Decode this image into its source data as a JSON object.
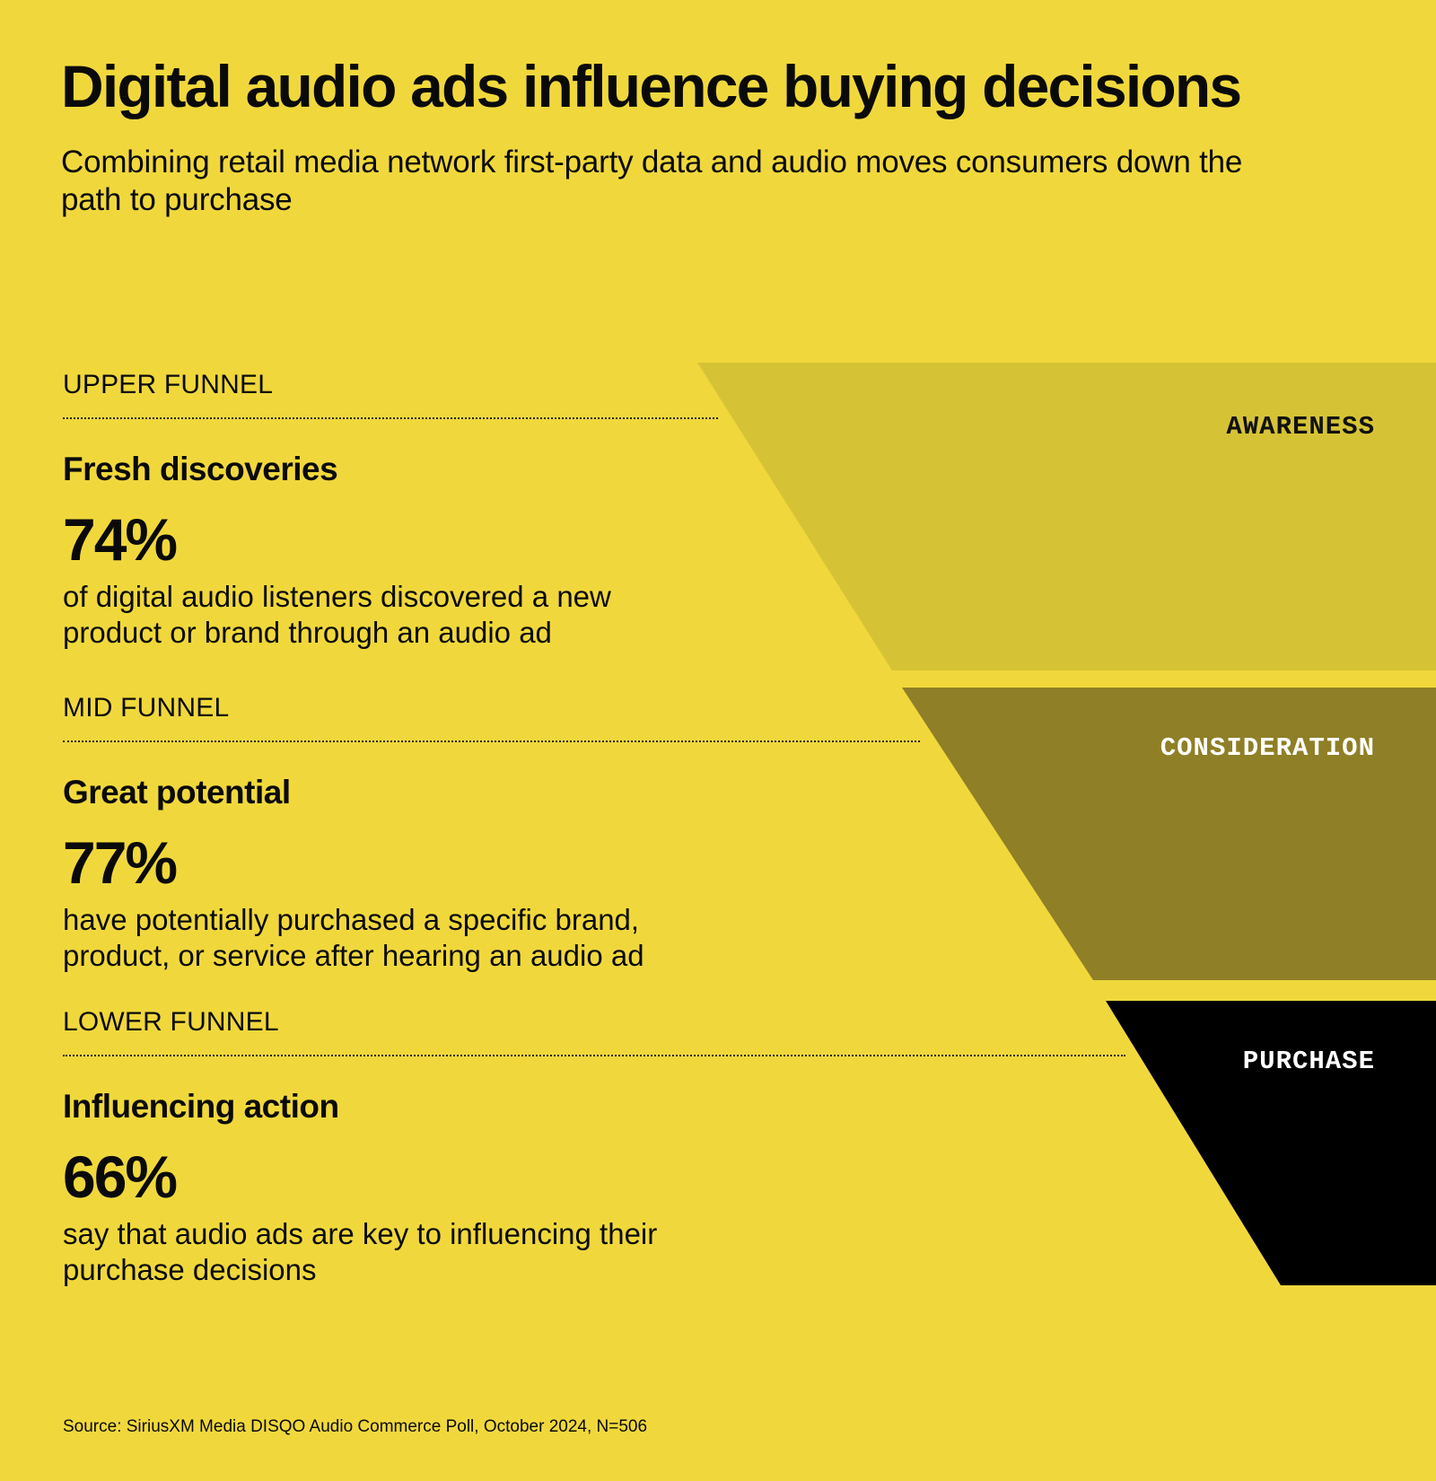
{
  "header": {
    "title": "Digital audio ads influence buying decisions",
    "subtitle": "Combining retail media network first-party data and audio moves consumers down the path to purchase"
  },
  "colors": {
    "background": "#f0d83c",
    "awareness": "#d6c335",
    "consideration": "#8f7f26",
    "purchase": "#000000"
  },
  "funnel": [
    {
      "stage": "AWARENESS",
      "eyebrow": "UPPER FUNNEL",
      "heading": "Fresh discoveries",
      "stat": "74%",
      "description": "of digital audio listeners discovered a new product or brand through an audio ad"
    },
    {
      "stage": "CONSIDERATION",
      "eyebrow": "MID FUNNEL",
      "heading": "Great potential",
      "stat": "77%",
      "description": "have potentially purchased a specific brand, product, or service after hearing an audio ad"
    },
    {
      "stage": "PURCHASE",
      "eyebrow": "LOWER FUNNEL",
      "heading": "Influencing action",
      "stat": "66%",
      "description": "say that audio ads are key to influencing their purchase decisions"
    }
  ],
  "footer": {
    "source": "Source: SiriusXM Media DISQO Audio Commerce Poll, October 2024, N=506"
  }
}
